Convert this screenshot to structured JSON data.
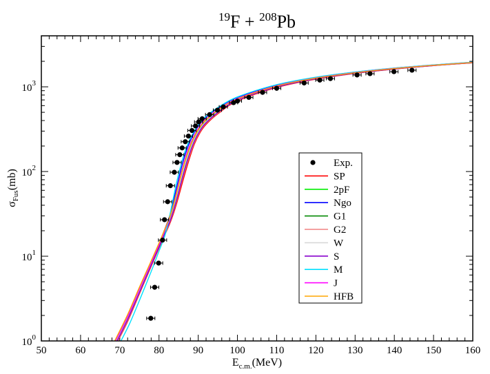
{
  "chart_data": {
    "type": "line",
    "title_parts": {
      "a_mass": "19",
      "a_elem": "F + ",
      "b_mass": "208",
      "b_elem": "Pb"
    },
    "xlabel": {
      "main": "E",
      "sub": "c.m.",
      "unit": "(MeV)"
    },
    "ylabel": {
      "main": "σ",
      "sub": "Fus",
      "unit": "(mb)"
    },
    "xlim": [
      50,
      160
    ],
    "ylim": [
      1,
      4000
    ],
    "yscale": "log",
    "x_ticks": [
      50,
      60,
      70,
      80,
      90,
      100,
      110,
      120,
      130,
      140,
      150,
      160
    ],
    "y_ticks": [
      {
        "value": 1,
        "base": "10",
        "exp": "0"
      },
      {
        "value": 10,
        "base": "10",
        "exp": "1"
      },
      {
        "value": 100,
        "base": "10",
        "exp": "2"
      },
      {
        "value": 1000,
        "base": "10",
        "exp": "3"
      }
    ],
    "legend_position": "center-right",
    "experimental": {
      "name": "Exp.",
      "points": [
        [
          77.9,
          1.85
        ],
        [
          78.9,
          4.3
        ],
        [
          79.9,
          8.3
        ],
        [
          80.9,
          15.5
        ],
        [
          81.4,
          27
        ],
        [
          82.2,
          44
        ],
        [
          82.9,
          68
        ],
        [
          83.9,
          98
        ],
        [
          84.6,
          128
        ],
        [
          85.3,
          158
        ],
        [
          85.9,
          190
        ],
        [
          86.7,
          225
        ],
        [
          87.5,
          262
        ],
        [
          88.4,
          305
        ],
        [
          89.3,
          345
        ],
        [
          90.1,
          385
        ],
        [
          91.0,
          420
        ],
        [
          92.9,
          470
        ],
        [
          94.9,
          530
        ],
        [
          96.4,
          580
        ],
        [
          99.0,
          650
        ],
        [
          100.0,
          680
        ],
        [
          102.9,
          750
        ],
        [
          106.4,
          860
        ],
        [
          110.0,
          960
        ],
        [
          117.0,
          1110
        ],
        [
          121.0,
          1200
        ],
        [
          123.7,
          1250
        ],
        [
          130.5,
          1380
        ],
        [
          133.8,
          1430
        ],
        [
          139.9,
          1510
        ],
        [
          144.5,
          1570
        ]
      ]
    },
    "series": [
      {
        "name": "SP",
        "color": "#ff0000",
        "points": [
          [
            69.5,
            1
          ],
          [
            72,
            1.7
          ],
          [
            75,
            3.6
          ],
          [
            78,
            7.6
          ],
          [
            80,
            12.5
          ],
          [
            81.5,
            18
          ],
          [
            83,
            26
          ],
          [
            84.5,
            42
          ],
          [
            86,
            75
          ],
          [
            87.5,
            130
          ],
          [
            89,
            210
          ],
          [
            90.5,
            290
          ],
          [
            92,
            360
          ],
          [
            95,
            480
          ],
          [
            100,
            680
          ],
          [
            110,
            980
          ],
          [
            120,
            1230
          ],
          [
            130,
            1440
          ],
          [
            140,
            1620
          ],
          [
            150,
            1780
          ],
          [
            160,
            1920
          ]
        ]
      },
      {
        "name": "2pF",
        "color": "#00ee00",
        "points": [
          [
            69.0,
            1
          ],
          [
            72,
            1.9
          ],
          [
            75,
            4.0
          ],
          [
            78,
            8.3
          ],
          [
            80,
            13.5
          ],
          [
            81.5,
            19.5
          ],
          [
            83,
            29
          ],
          [
            84.5,
            52
          ],
          [
            86,
            100
          ],
          [
            87.5,
            170
          ],
          [
            89,
            250
          ],
          [
            90.5,
            330
          ],
          [
            92,
            400
          ],
          [
            95,
            520
          ],
          [
            100,
            710
          ],
          [
            110,
            1010
          ],
          [
            120,
            1260
          ],
          [
            130,
            1460
          ],
          [
            140,
            1640
          ],
          [
            150,
            1790
          ],
          [
            160,
            1930
          ]
        ]
      },
      {
        "name": "Ngo",
        "color": "#0000ff",
        "points": [
          [
            68.8,
            1
          ],
          [
            72,
            2.0
          ],
          [
            75,
            4.2
          ],
          [
            78,
            8.6
          ],
          [
            80,
            14
          ],
          [
            81.5,
            21
          ],
          [
            83,
            33
          ],
          [
            84.5,
            65
          ],
          [
            86,
            125
          ],
          [
            87.5,
            205
          ],
          [
            89,
            290
          ],
          [
            90.5,
            370
          ],
          [
            92,
            440
          ],
          [
            95,
            560
          ],
          [
            100,
            750
          ],
          [
            110,
            1050
          ],
          [
            120,
            1290
          ],
          [
            130,
            1490
          ],
          [
            140,
            1660
          ],
          [
            150,
            1810
          ],
          [
            160,
            1950
          ]
        ]
      },
      {
        "name": "G1",
        "color": "#008800",
        "points": [
          [
            69.2,
            1
          ],
          [
            72,
            1.8
          ],
          [
            75,
            3.8
          ],
          [
            78,
            8.0
          ],
          [
            80,
            13
          ],
          [
            81.5,
            19
          ],
          [
            83,
            28
          ],
          [
            84.5,
            48
          ],
          [
            86,
            90
          ],
          [
            87.5,
            155
          ],
          [
            89,
            235
          ],
          [
            90.5,
            315
          ],
          [
            92,
            385
          ],
          [
            95,
            505
          ],
          [
            100,
            700
          ],
          [
            110,
            1000
          ],
          [
            120,
            1250
          ],
          [
            130,
            1450
          ],
          [
            140,
            1630
          ],
          [
            150,
            1785
          ],
          [
            160,
            1925
          ]
        ]
      },
      {
        "name": "G2",
        "color": "#f08080",
        "points": [
          [
            69.4,
            1
          ],
          [
            72,
            1.75
          ],
          [
            75,
            3.7
          ],
          [
            78,
            7.8
          ],
          [
            80,
            12.8
          ],
          [
            81.5,
            18.5
          ],
          [
            83,
            27
          ],
          [
            84.5,
            45
          ],
          [
            86,
            82
          ],
          [
            87.5,
            140
          ],
          [
            89,
            220
          ],
          [
            90.5,
            300
          ],
          [
            92,
            370
          ],
          [
            95,
            490
          ],
          [
            100,
            690
          ],
          [
            110,
            990
          ],
          [
            120,
            1240
          ],
          [
            130,
            1445
          ],
          [
            140,
            1625
          ],
          [
            150,
            1782
          ],
          [
            160,
            1922
          ]
        ]
      },
      {
        "name": "W",
        "color": "#d8d8d8",
        "points": [
          [
            69.1,
            1
          ],
          [
            72,
            1.85
          ],
          [
            75,
            3.9
          ],
          [
            78,
            8.1
          ],
          [
            80,
            13.2
          ],
          [
            81.5,
            19.2
          ],
          [
            83,
            28.5
          ],
          [
            84.5,
            50
          ],
          [
            86,
            95
          ],
          [
            87.5,
            160
          ],
          [
            89,
            240
          ],
          [
            90.5,
            320
          ],
          [
            92,
            390
          ],
          [
            95,
            510
          ],
          [
            100,
            705
          ],
          [
            110,
            1005
          ],
          [
            120,
            1255
          ],
          [
            130,
            1455
          ],
          [
            140,
            1635
          ],
          [
            150,
            1787
          ],
          [
            160,
            1928
          ]
        ]
      },
      {
        "name": "S",
        "color": "#8800cc",
        "points": [
          [
            69.3,
            1
          ],
          [
            72,
            1.8
          ],
          [
            75,
            3.75
          ],
          [
            78,
            7.9
          ],
          [
            80,
            12.9
          ],
          [
            81.5,
            18.8
          ],
          [
            83,
            27.5
          ],
          [
            84.5,
            47
          ],
          [
            86,
            86
          ],
          [
            87.5,
            148
          ],
          [
            89,
            228
          ],
          [
            90.5,
            308
          ],
          [
            92,
            378
          ],
          [
            95,
            498
          ],
          [
            100,
            695
          ],
          [
            110,
            995
          ],
          [
            120,
            1245
          ],
          [
            130,
            1448
          ],
          [
            140,
            1628
          ],
          [
            150,
            1783
          ],
          [
            160,
            1923
          ]
        ]
      },
      {
        "name": "M",
        "color": "#00e0ff",
        "points": [
          [
            70.3,
            1
          ],
          [
            72.5,
            1.6
          ],
          [
            75,
            3.0
          ],
          [
            78,
            6.6
          ],
          [
            80,
            11.5
          ],
          [
            81.5,
            17.5
          ],
          [
            82.5,
            27
          ],
          [
            83.5,
            45
          ],
          [
            84.5,
            75
          ],
          [
            86,
            140
          ],
          [
            87.5,
            220
          ],
          [
            89,
            300
          ],
          [
            90.5,
            380
          ],
          [
            92,
            450
          ],
          [
            95,
            570
          ],
          [
            100,
            760
          ],
          [
            110,
            1060
          ],
          [
            120,
            1300
          ],
          [
            130,
            1495
          ],
          [
            140,
            1665
          ],
          [
            150,
            1815
          ],
          [
            160,
            1955
          ]
        ]
      },
      {
        "name": "J",
        "color": "#ff00ff",
        "points": [
          [
            68.9,
            1
          ],
          [
            72,
            1.95
          ],
          [
            75,
            4.1
          ],
          [
            78,
            8.5
          ],
          [
            80,
            13.8
          ],
          [
            81.5,
            20.5
          ],
          [
            83,
            31
          ],
          [
            84.5,
            58
          ],
          [
            86,
            110
          ],
          [
            87.5,
            185
          ],
          [
            89,
            268
          ],
          [
            90.5,
            348
          ],
          [
            92,
            418
          ],
          [
            95,
            538
          ],
          [
            100,
            728
          ],
          [
            110,
            1028
          ],
          [
            120,
            1272
          ],
          [
            130,
            1472
          ],
          [
            140,
            1648
          ],
          [
            150,
            1798
          ],
          [
            160,
            1938
          ]
        ]
      },
      {
        "name": "HFB",
        "color": "#ffa500",
        "points": [
          [
            68.7,
            1
          ],
          [
            72,
            2.05
          ],
          [
            75,
            4.3
          ],
          [
            78,
            8.8
          ],
          [
            80,
            14.3
          ],
          [
            81.5,
            21
          ],
          [
            83,
            31.5
          ],
          [
            84.5,
            56
          ],
          [
            86,
            105
          ],
          [
            87.5,
            175
          ],
          [
            89,
            258
          ],
          [
            90.5,
            338
          ],
          [
            92,
            408
          ],
          [
            95,
            528
          ],
          [
            100,
            718
          ],
          [
            110,
            1018
          ],
          [
            120,
            1265
          ],
          [
            130,
            1465
          ],
          [
            140,
            1642
          ],
          [
            150,
            1795
          ],
          [
            160,
            1935
          ]
        ]
      }
    ]
  }
}
